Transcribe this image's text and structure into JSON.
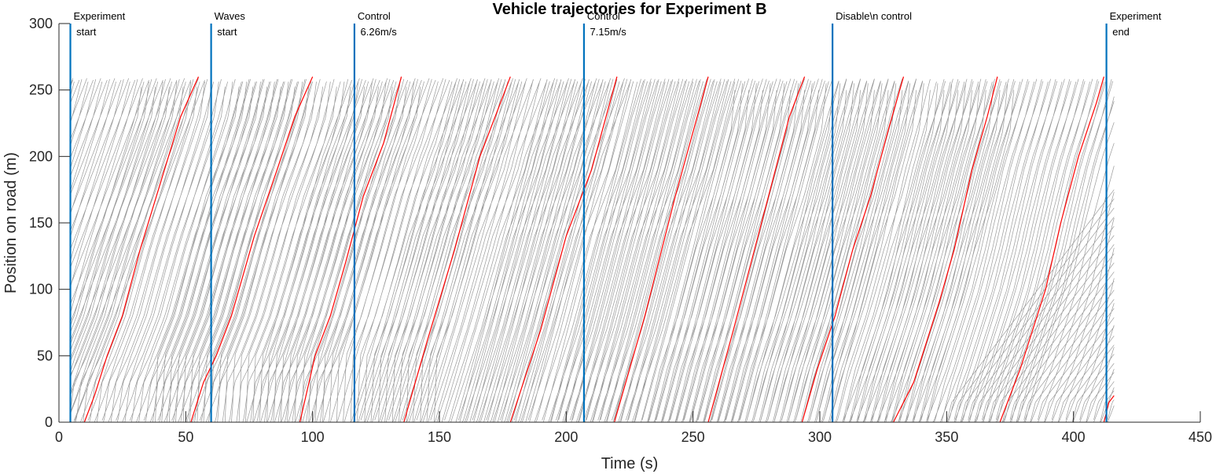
{
  "chart_data": {
    "type": "line",
    "title": "Vehicle trajectories for Experiment B",
    "xlabel": "Time (s)",
    "ylabel": "Position on road (m)",
    "xlim": [
      0,
      450
    ],
    "ylim": [
      0,
      300
    ],
    "xticks": [
      "0",
      "50",
      "100",
      "150",
      "200",
      "250",
      "300",
      "350",
      "400",
      "450"
    ],
    "yticks": [
      "0",
      "50",
      "100",
      "150",
      "200",
      "250",
      "300"
    ],
    "road_length": 260,
    "grid": false,
    "colors": {
      "followers": "#9a9a9a",
      "highlight": "#ff0000",
      "events": "#0072bd"
    },
    "events": [
      {
        "t": 4.5,
        "lines": [
          "Experiment",
          " start"
        ]
      },
      {
        "t": 60,
        "lines": [
          "Waves",
          " start"
        ]
      },
      {
        "t": 116.5,
        "lines": [
          "Control",
          " 6.26m/s"
        ]
      },
      {
        "t": 207,
        "lines": [
          "Control",
          " 7.15m/s"
        ]
      },
      {
        "t": 305,
        "lines": [
          "Disable\\n control"
        ]
      },
      {
        "t": 413,
        "lines": [
          "Experiment",
          " end"
        ]
      }
    ],
    "highlight_vehicle": {
      "name": "",
      "laps": [
        {
          "t": [
            10,
            14,
            19,
            25,
            32,
            40,
            48,
            55
          ],
          "y": [
            0,
            20,
            50,
            80,
            130,
            180,
            230,
            260
          ]
        },
        {
          "t": [
            52,
            57,
            62,
            68,
            77,
            86,
            93,
            100
          ],
          "y": [
            0,
            30,
            50,
            80,
            140,
            190,
            230,
            260
          ]
        },
        {
          "t": [
            95,
            101,
            107,
            113,
            120,
            128,
            135
          ],
          "y": [
            0,
            50,
            80,
            120,
            170,
            210,
            260
          ]
        },
        {
          "t": [
            136,
            145,
            156,
            166,
            176,
            178
          ],
          "y": [
            0,
            60,
            130,
            200,
            250,
            260
          ]
        },
        {
          "t": [
            178,
            190,
            200,
            210,
            220
          ],
          "y": [
            0,
            70,
            140,
            190,
            260
          ]
        },
        {
          "t": [
            219,
            231,
            243,
            256
          ],
          "y": [
            0,
            80,
            170,
            260
          ]
        },
        {
          "t": [
            256,
            266,
            277,
            288,
            294
          ],
          "y": [
            0,
            70,
            150,
            230,
            260
          ]
        },
        {
          "t": [
            293,
            299,
            306,
            313,
            320,
            327,
            333
          ],
          "y": [
            0,
            40,
            80,
            130,
            170,
            220,
            260
          ]
        },
        {
          "t": [
            329,
            337,
            347,
            353,
            360,
            366,
            370
          ],
          "y": [
            0,
            30,
            90,
            130,
            190,
            230,
            260
          ]
        },
        {
          "t": [
            371,
            379,
            389,
            395,
            402,
            409,
            412
          ],
          "y": [
            0,
            40,
            100,
            150,
            200,
            240,
            260
          ]
        },
        {
          "t": [
            412,
            414,
            416
          ],
          "y": [
            0,
            15,
            20
          ]
        }
      ]
    }
  }
}
